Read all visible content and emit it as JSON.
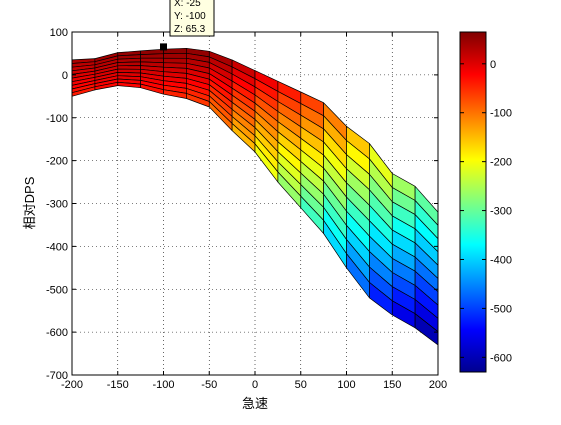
{
  "chart_data": {
    "type": "surface",
    "xlabel": "急速",
    "ylabel": "相对DPS",
    "xlim": [
      -200,
      200
    ],
    "zlim": [
      -700,
      100
    ],
    "x_ticks": [
      -200,
      -150,
      -100,
      -50,
      0,
      50,
      100,
      150,
      200
    ],
    "x_tick_labels": [
      "-200",
      "-150",
      "-100",
      "-50",
      "0",
      "50",
      "100",
      "150",
      "200"
    ],
    "z_ticks": [
      100,
      0,
      -100,
      -200,
      -300,
      -400,
      -500,
      -600,
      -700
    ],
    "z_tick_labels": [
      "100",
      "0",
      "-100",
      "-200",
      "-300",
      "-400",
      "-500",
      "-600",
      "-700"
    ],
    "grid": true,
    "colormap": "jet",
    "colorbar": {
      "range": [
        -630,
        65
      ],
      "tick_values": [
        0,
        -100,
        -200,
        -300,
        -400,
        -500,
        -600
      ],
      "tick_labels": [
        "0",
        "-100",
        "-200",
        "-300",
        "-400",
        "-500",
        "-600"
      ]
    },
    "surface": {
      "x": [
        -200,
        -175,
        -150,
        -125,
        -100,
        -75,
        -50,
        -25,
        0,
        25,
        50,
        75,
        100,
        125,
        150,
        175,
        200
      ],
      "top_edge": [
        35,
        38,
        52,
        56,
        60,
        62,
        55,
        35,
        10,
        -15,
        -40,
        -65,
        -120,
        -160,
        -230,
        -260,
        -320
      ],
      "bottom_edge": [
        -50,
        -35,
        -25,
        -30,
        -45,
        -55,
        -75,
        -130,
        -180,
        -250,
        -310,
        -370,
        -450,
        -520,
        -560,
        -590,
        -630
      ]
    },
    "datatip": {
      "x_label": "X: -25",
      "y_label": "Y: -100",
      "z_label": "Z: 65.3",
      "x": -100,
      "z": 65.3
    }
  }
}
